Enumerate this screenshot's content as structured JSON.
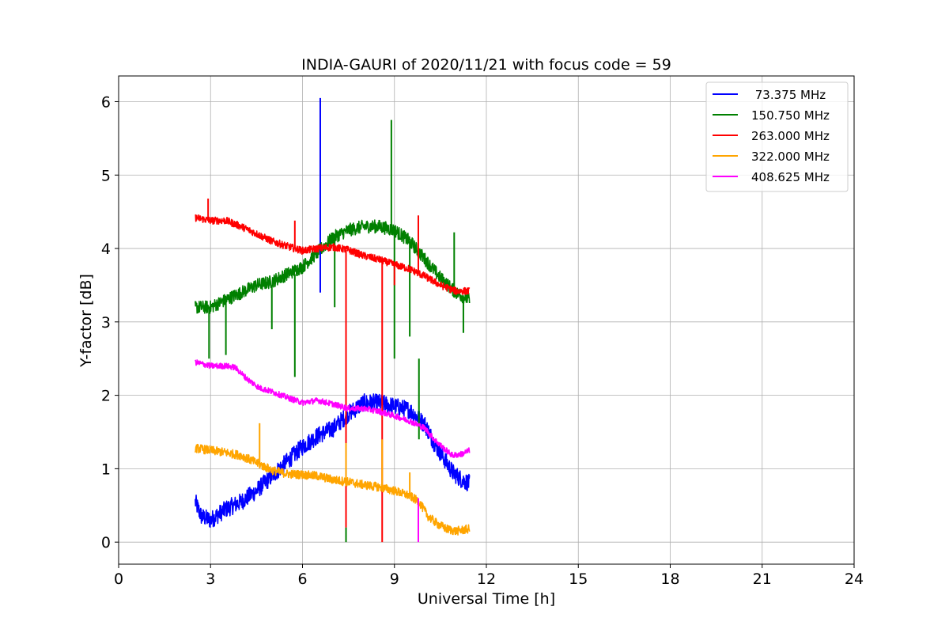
{
  "chart_data": {
    "type": "line",
    "title": "INDIA-GAURI of 2020/11/21 with focus code = 59",
    "xlabel": "Universal Time [h]",
    "ylabel": "Y-factor [dB]",
    "xlim": [
      0,
      24
    ],
    "ylim": [
      -0.3,
      6.35
    ],
    "xticks": [
      0,
      3,
      6,
      9,
      12,
      15,
      18,
      21,
      24
    ],
    "yticks": [
      0,
      1,
      2,
      3,
      4,
      5,
      6
    ],
    "grid": true,
    "legend_position": "top-right",
    "series": [
      {
        "name": " 73.375 MHz",
        "color": "#0000ff",
        "noise": 0.12,
        "x": [
          2.5,
          2.7,
          3.0,
          3.5,
          4.0,
          4.5,
          5.0,
          5.5,
          6.0,
          6.5,
          7.0,
          7.5,
          8.0,
          8.5,
          9.0,
          9.5,
          10.0,
          10.3,
          10.6,
          10.9,
          11.2,
          11.45
        ],
        "y": [
          0.55,
          0.35,
          0.3,
          0.45,
          0.55,
          0.7,
          0.9,
          1.1,
          1.3,
          1.45,
          1.55,
          1.75,
          1.9,
          1.9,
          1.85,
          1.8,
          1.6,
          1.35,
          1.15,
          0.95,
          0.85,
          0.8
        ],
        "spikes": [
          {
            "x": 6.58,
            "y": 6.05,
            "base": 3.4
          }
        ]
      },
      {
        "name": "150.750 MHz",
        "color": "#008000",
        "noise": 0.09,
        "x": [
          2.5,
          3.0,
          3.5,
          4.0,
          4.5,
          5.0,
          5.5,
          6.0,
          6.5,
          7.0,
          7.5,
          8.0,
          8.5,
          9.0,
          9.5,
          10.0,
          10.5,
          11.0,
          11.45
        ],
        "y": [
          3.2,
          3.2,
          3.3,
          3.4,
          3.5,
          3.55,
          3.65,
          3.75,
          3.95,
          4.15,
          4.25,
          4.3,
          4.3,
          4.25,
          4.1,
          3.85,
          3.6,
          3.4,
          3.3
        ],
        "spikes": [
          {
            "x": 8.9,
            "y": 5.75,
            "base": 4.3
          },
          {
            "x": 10.95,
            "y": 4.22,
            "base": 3.45
          },
          {
            "x": 2.95,
            "y": 2.5,
            "base": 3.2
          },
          {
            "x": 3.5,
            "y": 2.55,
            "base": 3.3
          },
          {
            "x": 5.0,
            "y": 2.9,
            "base": 3.5
          },
          {
            "x": 5.75,
            "y": 2.25,
            "base": 3.65
          },
          {
            "x": 7.05,
            "y": 3.2,
            "base": 4.15
          },
          {
            "x": 9.0,
            "y": 2.5,
            "base": 4.25
          },
          {
            "x": 9.5,
            "y": 2.8,
            "base": 4.1
          },
          {
            "x": 11.25,
            "y": 2.85,
            "base": 3.35
          },
          {
            "x": 7.42,
            "y": 0.0,
            "base": 0.2
          },
          {
            "x": 9.8,
            "y": 1.4,
            "base": 2.5
          }
        ]
      },
      {
        "name": "263.000 MHz",
        "color": "#ff0000",
        "noise": 0.05,
        "x": [
          2.5,
          3.0,
          3.5,
          4.0,
          4.5,
          5.0,
          5.5,
          6.0,
          6.5,
          7.0,
          7.5,
          8.0,
          8.5,
          9.0,
          9.5,
          10.0,
          10.5,
          11.0,
          11.45
        ],
        "y": [
          4.42,
          4.38,
          4.38,
          4.3,
          4.2,
          4.1,
          4.03,
          3.97,
          4.0,
          4.02,
          3.98,
          3.9,
          3.85,
          3.78,
          3.72,
          3.62,
          3.5,
          3.42,
          3.42
        ],
        "spikes": [
          {
            "x": 2.92,
            "y": 4.68,
            "base": 4.38
          },
          {
            "x": 5.75,
            "y": 4.38,
            "base": 4.03
          },
          {
            "x": 7.42,
            "y": 0.2,
            "base": 3.98
          },
          {
            "x": 8.6,
            "y": 0.0,
            "base": 3.85
          },
          {
            "x": 9.78,
            "y": 4.45,
            "base": 3.65
          },
          {
            "x": 9.0,
            "y": 3.5,
            "base": 3.78
          }
        ]
      },
      {
        "name": "322.000 MHz",
        "color": "#ffa500",
        "noise": 0.06,
        "x": [
          2.5,
          3.0,
          3.5,
          4.0,
          4.5,
          5.0,
          5.5,
          6.0,
          6.5,
          7.0,
          7.5,
          8.0,
          8.5,
          9.0,
          9.5,
          9.8,
          10.1,
          10.4,
          10.7,
          11.0,
          11.45
        ],
        "y": [
          1.28,
          1.25,
          1.22,
          1.18,
          1.08,
          0.98,
          0.93,
          0.92,
          0.9,
          0.85,
          0.82,
          0.78,
          0.75,
          0.7,
          0.63,
          0.55,
          0.35,
          0.25,
          0.18,
          0.15,
          0.18
        ],
        "spikes": [
          {
            "x": 4.6,
            "y": 1.62,
            "base": 1.08
          },
          {
            "x": 9.5,
            "y": 0.95,
            "base": 0.63
          },
          {
            "x": 7.42,
            "y": 1.35,
            "base": 0.82
          },
          {
            "x": 8.6,
            "y": 1.4,
            "base": 0.75
          }
        ]
      },
      {
        "name": "408.625 MHz",
        "color": "#ff00ff",
        "noise": 0.04,
        "x": [
          2.5,
          3.0,
          3.5,
          3.8,
          4.2,
          4.6,
          5.0,
          5.5,
          6.0,
          6.5,
          7.0,
          7.5,
          8.0,
          8.5,
          9.0,
          9.5,
          10.0,
          10.3,
          10.6,
          10.9,
          11.2,
          11.45
        ],
        "y": [
          2.45,
          2.4,
          2.4,
          2.38,
          2.22,
          2.1,
          2.05,
          1.97,
          1.9,
          1.93,
          1.88,
          1.82,
          1.82,
          1.78,
          1.72,
          1.65,
          1.55,
          1.4,
          1.28,
          1.18,
          1.2,
          1.25
        ],
        "spikes": [
          {
            "x": 9.78,
            "y": 0.0,
            "base": 0.6
          }
        ]
      }
    ]
  }
}
